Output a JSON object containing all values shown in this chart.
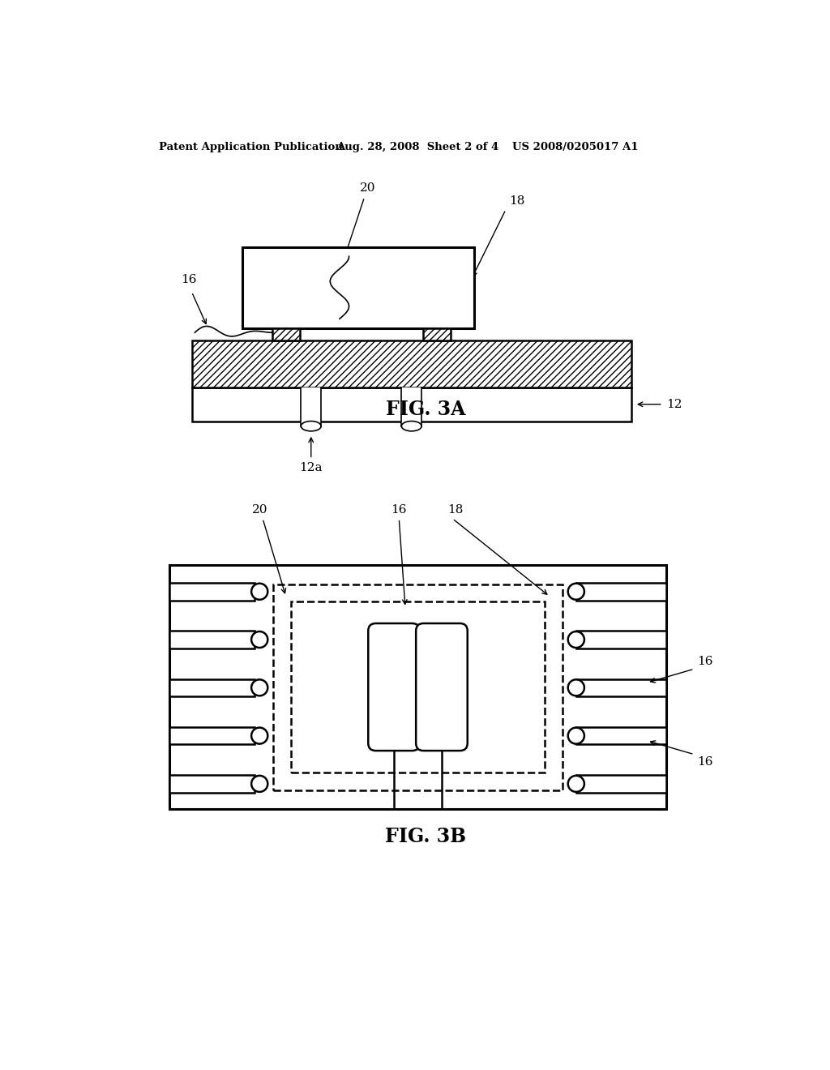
{
  "bg_color": "#ffffff",
  "line_color": "#000000",
  "header_text": "Patent Application Publication",
  "header_date": "Aug. 28, 2008  Sheet 2 of 4",
  "header_patent": "US 2008/0205017 A1",
  "fig3a_label": "FIG. 3A",
  "fig3b_label": "FIG. 3B",
  "label_20_3a": "20",
  "label_18_3a": "18",
  "label_16_3a": "16",
  "label_12_3a": "12",
  "label_12a_3a": "12a",
  "label_20_3b": "20",
  "label_16_3b_top": "16",
  "label_18_3b": "18",
  "label_16_3b_r1": "16",
  "label_16_3b_r2": "16"
}
